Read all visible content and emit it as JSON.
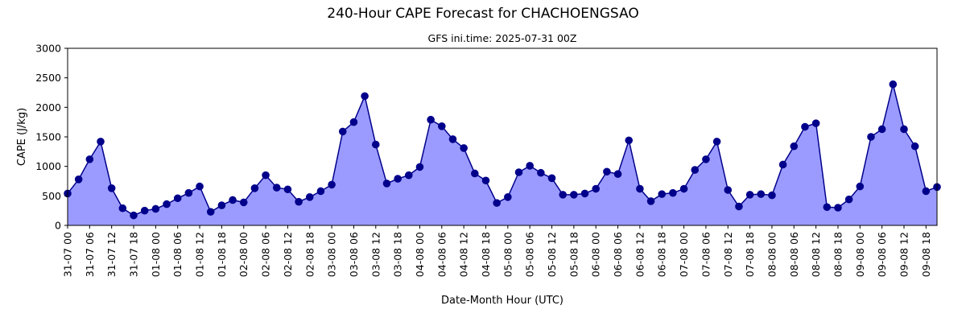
{
  "chart_data": {
    "type": "area",
    "title": "240-Hour CAPE Forecast for CHACHOENGSAO",
    "subtitle": "GFS ini.time: 2025-07-31 00Z",
    "xlabel": "Date-Month Hour (UTC)",
    "ylabel": "CAPE (J/kg)",
    "ylim": [
      0,
      3000
    ],
    "yticks": [
      0,
      500,
      1000,
      1500,
      2000,
      2500,
      3000
    ],
    "xtick_labels": [
      "31-07 00",
      "31-07 06",
      "31-07 12",
      "31-07 18",
      "01-08 00",
      "01-08 06",
      "01-08 12",
      "01-08 18",
      "02-08 00",
      "02-08 06",
      "02-08 12",
      "02-08 18",
      "03-08 00",
      "03-08 06",
      "03-08 12",
      "03-08 18",
      "04-08 00",
      "04-08 06",
      "04-08 12",
      "04-08 18",
      "05-08 00",
      "05-08 06",
      "05-08 12",
      "05-08 18",
      "06-08 00",
      "06-08 06",
      "06-08 12",
      "06-08 18",
      "07-08 00",
      "07-08 06",
      "07-08 12",
      "07-08 18",
      "08-08 00",
      "08-08 06",
      "08-08 12",
      "08-08 18",
      "09-08 00",
      "09-08 06",
      "09-08 12",
      "09-08 18"
    ],
    "x_step_hours": 3,
    "values": [
      540,
      780,
      1120,
      1420,
      630,
      290,
      170,
      250,
      280,
      360,
      460,
      550,
      660,
      230,
      340,
      430,
      390,
      630,
      850,
      640,
      610,
      400,
      480,
      580,
      690,
      1590,
      1750,
      2190,
      1370,
      710,
      790,
      850,
      990,
      1790,
      1680,
      1460,
      1310,
      880,
      760,
      380,
      480,
      900,
      1010,
      890,
      800,
      520,
      520,
      540,
      620,
      910,
      870,
      1440,
      620,
      410,
      530,
      550,
      620,
      940,
      1120,
      1420,
      600,
      320,
      520,
      530,
      510,
      1030,
      1340,
      1670,
      1730,
      310,
      300,
      440,
      660,
      1500,
      1630,
      2390,
      1630,
      1340,
      580,
      650
    ],
    "grid": false,
    "legend": "none",
    "colors": {
      "fill": "#9b9bff",
      "line": "#00008b",
      "marker": "#00008b"
    }
  }
}
